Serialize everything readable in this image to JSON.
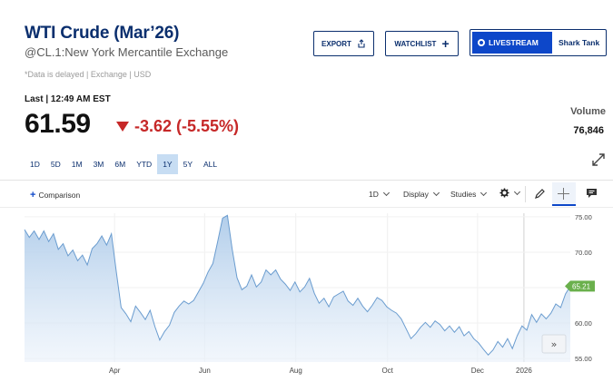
{
  "header": {
    "title": "WTI Crude (Mar’26)",
    "subtitle": "@CL.1:New York Mercantile Exchange",
    "delayed_note": "*Data is delayed | Exchange | USD"
  },
  "actions": {
    "export_label": "EXPORT",
    "watchlist_label": "WATCHLIST",
    "livestream_label": "LIVESTREAM",
    "livestream_show": "Shark Tank"
  },
  "quote": {
    "last_label": "Last | 12:49 AM EST",
    "price": "61.59",
    "change": "-3.62 (-5.55%)",
    "change_color": "#c62828",
    "volume_label": "Volume",
    "volume_value": "76,846"
  },
  "ranges": [
    {
      "label": "1D",
      "active": false
    },
    {
      "label": "5D",
      "active": false
    },
    {
      "label": "1M",
      "active": false
    },
    {
      "label": "3M",
      "active": false
    },
    {
      "label": "6M",
      "active": false
    },
    {
      "label": "YTD",
      "active": false
    },
    {
      "label": "1Y",
      "active": true
    },
    {
      "label": "5Y",
      "active": false
    },
    {
      "label": "ALL",
      "active": false
    }
  ],
  "toolbar": {
    "comparison_label": "Comparison",
    "interval_label": "1D",
    "display_label": "Display",
    "studies_label": "Studies"
  },
  "chart_data": {
    "type": "area",
    "x_labels": [
      "Apr",
      "Jun",
      "Aug",
      "Oct",
      "Dec",
      "2026"
    ],
    "y_ticks": [
      "75.00",
      "70.00",
      "65.00",
      "60.00",
      "55.00"
    ],
    "ylim": [
      54.5,
      75.5
    ],
    "last_value_label": "65.21",
    "values": [
      73.2,
      72.1,
      73.0,
      71.8,
      73.0,
      71.5,
      72.6,
      70.4,
      71.2,
      69.5,
      70.3,
      68.8,
      69.6,
      68.2,
      70.5,
      71.2,
      72.3,
      71.0,
      72.6,
      67.2,
      62.2,
      61.3,
      60.2,
      62.4,
      61.5,
      60.5,
      61.8,
      59.5,
      57.6,
      58.8,
      59.7,
      61.5,
      62.4,
      63.1,
      62.7,
      63.2,
      64.4,
      65.6,
      67.2,
      68.4,
      71.5,
      74.8,
      75.2,
      70.4,
      66.4,
      64.7,
      65.2,
      66.8,
      65.1,
      65.8,
      67.5,
      66.8,
      67.5,
      66.2,
      65.5,
      64.6,
      65.8,
      64.4,
      65.1,
      66.3,
      64.2,
      62.8,
      63.5,
      62.3,
      63.7,
      64.1,
      64.5,
      63.1,
      62.5,
      63.5,
      62.4,
      61.6,
      62.5,
      63.6,
      63.2,
      62.3,
      61.8,
      61.4,
      60.6,
      59.2,
      57.8,
      58.5,
      59.4,
      60.1,
      59.4,
      60.3,
      59.8,
      58.9,
      59.6,
      58.7,
      59.5,
      58.2,
      58.8,
      57.8,
      57.2,
      56.3,
      55.5,
      56.2,
      57.4,
      56.6,
      57.8,
      56.4,
      58.2,
      59.6,
      59.0,
      61.2,
      60.1,
      61.3,
      60.6,
      61.4,
      62.7,
      62.2,
      64.1,
      65.21
    ]
  }
}
